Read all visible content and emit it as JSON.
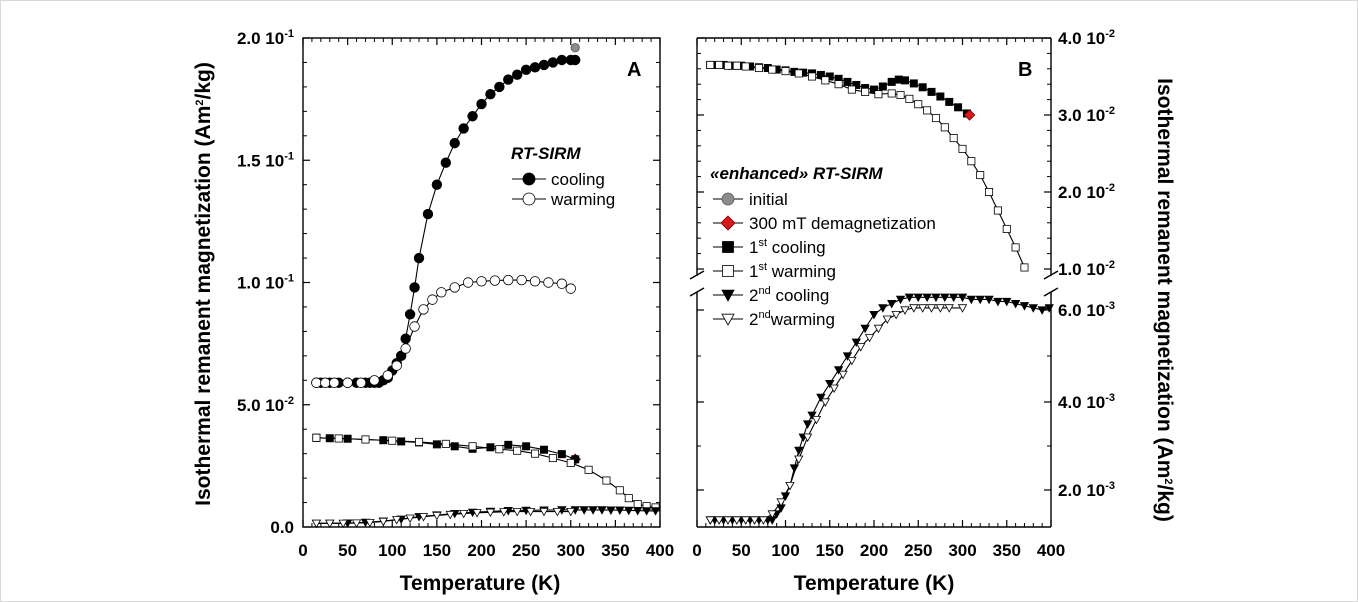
{
  "chart_data": [
    {
      "panel": "A",
      "type": "scatter",
      "xlabel": "Temperature (K)",
      "ylabel": "Isothermal remanent magnetization (Am²/kg)",
      "xlim": [
        0,
        400
      ],
      "ylim": [
        0,
        0.2
      ],
      "x_ticks": [
        "0",
        "50",
        "100",
        "150",
        "200",
        "250",
        "300",
        "350",
        "400"
      ],
      "y_ticks": [
        "0.0",
        "5.0 10",
        "1.0 10",
        "1.5 10",
        "2.0 10"
      ],
      "y_tick_exps": [
        "",
        "-2",
        "-1",
        "-1",
        "-1"
      ],
      "legend": {
        "title": "RT-SIRM",
        "entries": [
          "cooling",
          "warming"
        ]
      },
      "series": [
        {
          "name": "cooling",
          "x": [
            305,
            300,
            290,
            280,
            270,
            260,
            250,
            240,
            230,
            220,
            210,
            200,
            190,
            180,
            170,
            160,
            150,
            140,
            130,
            125,
            120,
            115,
            110,
            105,
            100,
            95,
            90,
            85,
            80,
            75,
            70,
            60,
            50,
            40,
            30,
            20,
            15
          ],
          "y": [
            0.191,
            0.191,
            0.191,
            0.19,
            0.189,
            0.188,
            0.187,
            0.185,
            0.183,
            0.18,
            0.177,
            0.173,
            0.168,
            0.163,
            0.157,
            0.149,
            0.14,
            0.128,
            0.11,
            0.098,
            0.087,
            0.077,
            0.07,
            0.067,
            0.064,
            0.061,
            0.06,
            0.059,
            0.059,
            0.059,
            0.059,
            0.059,
            0.059,
            0.059,
            0.059,
            0.059,
            0.059
          ]
        },
        {
          "name": "warming",
          "x": [
            15,
            25,
            35,
            50,
            65,
            80,
            95,
            105,
            115,
            125,
            135,
            145,
            155,
            170,
            185,
            200,
            215,
            230,
            245,
            260,
            275,
            290,
            300
          ],
          "y": [
            0.059,
            0.059,
            0.059,
            0.059,
            0.059,
            0.06,
            0.062,
            0.066,
            0.073,
            0.082,
            0.089,
            0.093,
            0.096,
            0.098,
            0.1,
            0.1005,
            0.1008,
            0.101,
            0.101,
            0.1005,
            0.1,
            0.0995,
            0.0975
          ]
        },
        {
          "name": "initial",
          "x": [
            305
          ],
          "y": [
            0.196
          ]
        },
        {
          "name": "300 mT demagnetization",
          "x": [
            305
          ],
          "y": [
            0.0277
          ]
        },
        {
          "name": "1st cooling",
          "x": [
            305,
            290,
            270,
            250,
            230,
            210,
            190,
            170,
            150,
            130,
            110,
            90,
            70,
            50,
            30,
            15
          ],
          "y": [
            0.0277,
            0.0298,
            0.0316,
            0.033,
            0.0336,
            0.0326,
            0.032,
            0.033,
            0.0338,
            0.0346,
            0.035,
            0.0355,
            0.0358,
            0.0361,
            0.0363,
            0.0365
          ]
        },
        {
          "name": "1st warming",
          "x": [
            15,
            40,
            70,
            100,
            130,
            160,
            190,
            220,
            240,
            260,
            280,
            300,
            320,
            340,
            355,
            365,
            375,
            385,
            395
          ],
          "y": [
            0.0365,
            0.0362,
            0.0358,
            0.0353,
            0.0348,
            0.034,
            0.033,
            0.0318,
            0.0312,
            0.03,
            0.0282,
            0.0262,
            0.0234,
            0.019,
            0.015,
            0.0118,
            0.0094,
            0.0085,
            0.008
          ]
        },
        {
          "name": "2nd cooling",
          "x": [
            395,
            385,
            375,
            365,
            355,
            345,
            335,
            325,
            315,
            305,
            290,
            270,
            250,
            230,
            210,
            190,
            170,
            150,
            130,
            110,
            90,
            70,
            50,
            30,
            15
          ],
          "y": [
            0.0066,
            0.0066,
            0.0067,
            0.0068,
            0.0069,
            0.0069,
            0.007,
            0.007,
            0.007,
            0.007,
            0.007,
            0.0069,
            0.0068,
            0.0067,
            0.0064,
            0.006,
            0.0055,
            0.0049,
            0.0042,
            0.0032,
            0.0024,
            0.0019,
            0.0016,
            0.0015,
            0.0015
          ]
        },
        {
          "name": "2nd warming",
          "x": [
            15,
            30,
            45,
            60,
            75,
            90,
            105,
            120,
            135,
            150,
            165,
            180,
            195,
            210,
            225,
            240,
            255,
            270,
            285,
            300
          ],
          "y": [
            0.0015,
            0.0015,
            0.0015,
            0.0016,
            0.0018,
            0.0023,
            0.003,
            0.0036,
            0.0042,
            0.0047,
            0.0051,
            0.0055,
            0.0058,
            0.006,
            0.0062,
            0.0063,
            0.0063,
            0.0063,
            0.0063,
            0.0063
          ]
        }
      ]
    },
    {
      "panel": "B",
      "type": "scatter",
      "xlabel": "Temperature (K)",
      "ylabel": "Isothermal remanent magnetization (Am²/kg)",
      "xlim": [
        0,
        400
      ],
      "y_scale": "broken",
      "y_upper": [
        0.01,
        0.04
      ],
      "y_lower": [
        0.0015,
        0.0068
      ],
      "x_ticks": [
        "0",
        "50",
        "100",
        "150",
        "200",
        "250",
        "300",
        "350",
        "400"
      ],
      "y_ticks_upper": [
        "1.0 10",
        "2.0 10",
        "3.0 10",
        "4.0 10"
      ],
      "y_ticks_upper_exps": [
        "-2",
        "-2",
        "-2",
        "-2"
      ],
      "y_ticks_lower": [
        "2.0 10",
        "4.0 10",
        "6.0 10"
      ],
      "y_ticks_lower_exps": [
        "-3",
        "-3",
        "-3"
      ],
      "legend": {
        "title": "«enhanced» RT-SIRM",
        "entries": [
          {
            "text": "initial"
          },
          {
            "text": "300 mT demagnetization"
          },
          {
            "pre": "1",
            "sup": "st",
            "post": " cooling"
          },
          {
            "pre": "1",
            "sup": "st",
            "post": " warming"
          },
          {
            "pre": "2",
            "sup": "nd",
            "post": " cooling"
          },
          {
            "pre": "2",
            "sup": "nd",
            "post": "warming"
          }
        ]
      },
      "series": [
        {
          "name": "1st cooling",
          "x": [
            305,
            295,
            285,
            275,
            265,
            255,
            245,
            235,
            228,
            220,
            210,
            200,
            190,
            180,
            170,
            160,
            150,
            140,
            130,
            120,
            110,
            100,
            90,
            80,
            70,
            60,
            50,
            40,
            30,
            20,
            15
          ],
          "y": [
            0.0302,
            0.031,
            0.0317,
            0.0324,
            0.033,
            0.0336,
            0.0341,
            0.0345,
            0.0346,
            0.0343,
            0.0337,
            0.0333,
            0.0335,
            0.0339,
            0.0343,
            0.0347,
            0.035,
            0.0352,
            0.0354,
            0.0355,
            0.0356,
            0.0358,
            0.0359,
            0.0361,
            0.0362,
            0.0363,
            0.0364,
            0.0364,
            0.0365,
            0.0365,
            0.0365
          ]
        },
        {
          "name": "1st warming",
          "x": [
            15,
            25,
            35,
            45,
            55,
            70,
            85,
            100,
            115,
            130,
            145,
            160,
            175,
            190,
            205,
            220,
            230,
            240,
            250,
            260,
            270,
            280,
            290,
            300,
            310,
            320,
            330,
            340,
            350,
            360,
            370
          ],
          "y": [
            0.0365,
            0.0365,
            0.0364,
            0.0364,
            0.0363,
            0.0361,
            0.0359,
            0.0357,
            0.0354,
            0.035,
            0.0345,
            0.034,
            0.0333,
            0.033,
            0.0327,
            0.0328,
            0.0326,
            0.0321,
            0.0314,
            0.0306,
            0.0296,
            0.0284,
            0.027,
            0.0256,
            0.024,
            0.0222,
            0.02,
            0.0176,
            0.0152,
            0.0128,
            0.0102
          ]
        },
        {
          "name": "initial",
          "x": [],
          "y": []
        },
        {
          "name": "300 mT demagnetization",
          "x": [
            308
          ],
          "y": [
            0.03
          ]
        },
        {
          "name": "2nd cooling",
          "x": [
            398,
            390,
            380,
            370,
            360,
            350,
            340,
            330,
            320,
            310,
            300,
            290,
            280,
            270,
            260,
            250,
            240,
            230,
            220,
            210,
            200,
            190,
            180,
            170,
            160,
            150,
            140,
            130,
            125,
            120,
            115,
            110,
            105,
            100,
            95,
            90,
            85,
            80,
            70,
            60,
            50,
            40,
            30,
            20,
            15
          ],
          "y": [
            0.0061,
            0.006,
            0.0061,
            0.0062,
            0.0063,
            0.0064,
            0.0064,
            0.0065,
            0.0065,
            0.0065,
            0.0066,
            0.0066,
            0.0066,
            0.0066,
            0.0066,
            0.0066,
            0.0066,
            0.0065,
            0.0063,
            0.0061,
            0.0059,
            0.0056,
            0.0053,
            0.005,
            0.0047,
            0.0044,
            0.0041,
            0.0037,
            0.0035,
            0.0032,
            0.0029,
            0.0025,
            0.0021,
            0.0019,
            0.0017,
            0.0016,
            0.0015,
            0.0015,
            0.0015,
            0.0015,
            0.0015,
            0.0015,
            0.0015,
            0.0015,
            0.0015
          ]
        },
        {
          "name": "2nd warming",
          "x": [
            15,
            25,
            35,
            45,
            55,
            65,
            75,
            85,
            95,
            105,
            115,
            125,
            135,
            145,
            155,
            165,
            175,
            185,
            195,
            205,
            215,
            225,
            235,
            245,
            255,
            265,
            275,
            285,
            300
          ],
          "y": [
            0.0015,
            0.0015,
            0.0015,
            0.0015,
            0.0015,
            0.0015,
            0.0015,
            0.0016,
            0.0018,
            0.0021,
            0.0027,
            0.0032,
            0.0036,
            0.004,
            0.0043,
            0.0046,
            0.0049,
            0.0052,
            0.0054,
            0.0056,
            0.0058,
            0.0059,
            0.006,
            0.0061,
            0.0061,
            0.0061,
            0.0061,
            0.0061,
            0.0061
          ]
        }
      ]
    }
  ],
  "panel_a_letter": "A",
  "panel_b_letter": "B",
  "left_axis_title": "Isothermal remanent magnetization (Am",
  "left_axis_title_sup": "2",
  "left_axis_title_end": "/kg)",
  "right_axis_title": "Isothermal remanent magnetization (Am",
  "right_axis_title_sup": "2",
  "right_axis_title_end": "/kg)",
  "x_title_a": "Temperature (K)",
  "x_title_b": "Temperature (K)"
}
